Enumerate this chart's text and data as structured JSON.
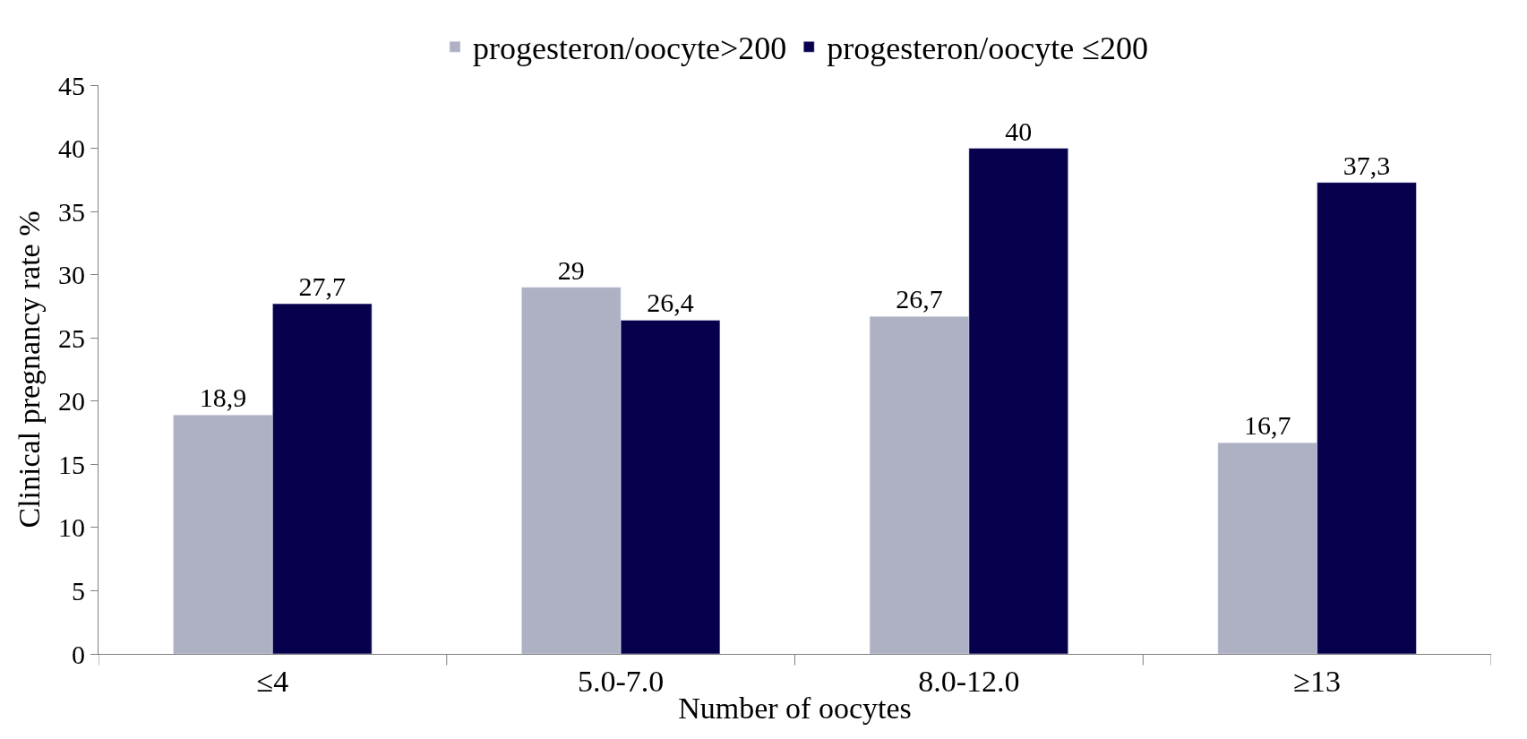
{
  "chart_data": {
    "type": "bar",
    "xlabel": "Number of oocytes",
    "ylabel": "Clinical pregnancy rate %",
    "categories": [
      "≤4",
      "5.0-7.0",
      "8.0-12.0",
      "≥13"
    ],
    "series": [
      {
        "name": "progesteron/oocyte>200",
        "color": "#aeb0c4",
        "values": [
          18.9,
          29,
          26.7,
          16.7
        ],
        "value_labels": [
          "18,9",
          "29",
          "26,7",
          "16,7"
        ]
      },
      {
        "name": "progesteron/oocyte ≤200",
        "color": "#07004d",
        "values": [
          27.7,
          26.4,
          40,
          37.3
        ],
        "value_labels": [
          "27,7",
          "26,4",
          "40",
          "37,3"
        ]
      }
    ],
    "ylim": [
      0,
      45
    ],
    "yticks": [
      0,
      5,
      10,
      15,
      20,
      25,
      30,
      35,
      40,
      45
    ],
    "legend": "top"
  }
}
